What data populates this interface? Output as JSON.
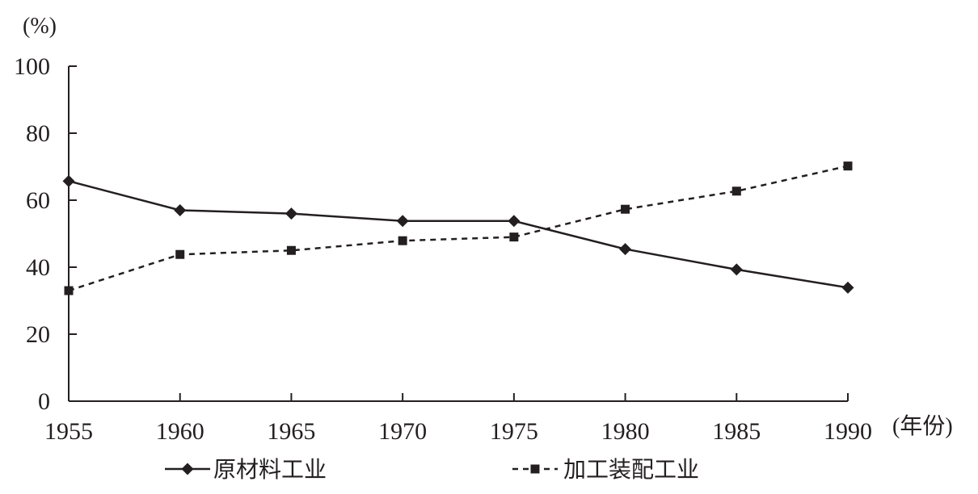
{
  "chart_data": {
    "type": "line",
    "x": [
      1955,
      1960,
      1965,
      1970,
      1975,
      1980,
      1985,
      1990
    ],
    "x_tick_labels": [
      "1955",
      "1960",
      "1965",
      "1970",
      "1975",
      "1980",
      "1985",
      "1990"
    ],
    "y_tick_labels": [
      "0",
      "20",
      "40",
      "60",
      "80",
      "100"
    ],
    "y_ticks": [
      0,
      20,
      40,
      60,
      80,
      100
    ],
    "ylim": [
      0,
      100
    ],
    "xlim": [
      1955,
      1990
    ],
    "ylabel": "(%)",
    "xlabel": "(年份)",
    "grid": false,
    "legend_position": "bottom",
    "series": [
      {
        "name": "原材料工业",
        "values": [
          65.7,
          57,
          56,
          53.8,
          53.8,
          45.4,
          39.3,
          33.9
        ],
        "marker": "diamond",
        "line_style": "solid",
        "color": "#231f20"
      },
      {
        "name": "加工装配工业",
        "values": [
          33,
          43.8,
          45,
          47.9,
          49,
          57.3,
          62.7,
          70.2
        ],
        "marker": "square",
        "line_style": "dashed",
        "color": "#231f20"
      }
    ]
  }
}
